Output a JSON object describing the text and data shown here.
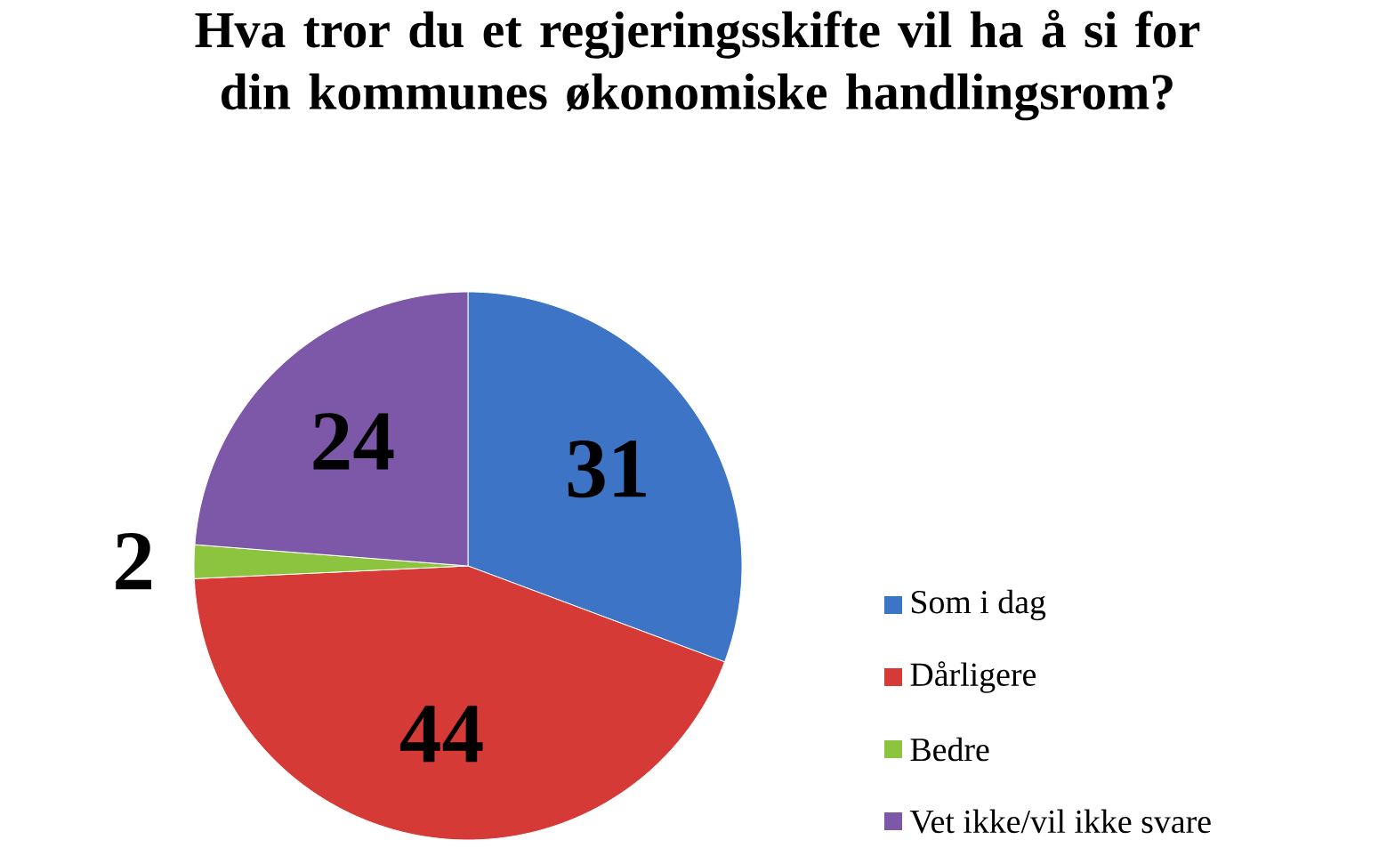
{
  "chart_data": {
    "type": "pie",
    "title": "Hva tror du et regjeringsskifte vil ha å si for din kommunes økonomiske handlingsrom?",
    "categories": [
      "Som i dag",
      "Dårligere",
      "Bedre",
      "Vet ikke/vil ikke svare"
    ],
    "values": [
      31,
      44,
      2,
      24
    ],
    "colors": [
      "#3e74c5",
      "#d63a36",
      "#8dc43f",
      "#7d57a8"
    ],
    "data_labels": true,
    "legend": "right"
  }
}
